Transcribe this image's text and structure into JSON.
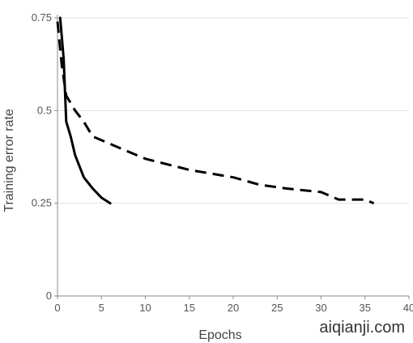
{
  "chart_data": {
    "type": "line",
    "xlabel": "Epochs",
    "ylabel": "Training error rate",
    "xlim": [
      0,
      40
    ],
    "ylim": [
      0,
      0.75
    ],
    "x_ticks": [
      0,
      5,
      10,
      15,
      20,
      25,
      30,
      35,
      40
    ],
    "y_ticks": [
      0,
      0.25,
      0.5,
      0.75
    ],
    "x_tick_labels": [
      "0",
      "5",
      "10",
      "15",
      "20",
      "25",
      "30",
      "35",
      "40"
    ],
    "y_tick_labels": [
      "0",
      "0.25",
      "0.5",
      "0.75"
    ],
    "grid": {
      "horizontal": true,
      "vertical": false
    },
    "series": [
      {
        "style": "solid",
        "color": "#000000",
        "x": [
          0.3,
          0.7,
          1,
          1.5,
          2,
          3,
          4,
          5,
          6
        ],
        "y": [
          0.75,
          0.64,
          0.47,
          0.43,
          0.38,
          0.32,
          0.29,
          0.265,
          0.25
        ]
      },
      {
        "style": "dashed",
        "color": "#000000",
        "x": [
          0,
          0.5,
          1,
          2,
          3,
          4,
          5,
          7,
          10,
          15,
          20,
          23,
          26,
          30,
          32,
          35,
          36
        ],
        "y": [
          0.74,
          0.62,
          0.54,
          0.5,
          0.47,
          0.43,
          0.42,
          0.4,
          0.37,
          0.34,
          0.32,
          0.3,
          0.29,
          0.28,
          0.26,
          0.26,
          0.25
        ]
      }
    ]
  },
  "watermark": "aiqianji.com"
}
